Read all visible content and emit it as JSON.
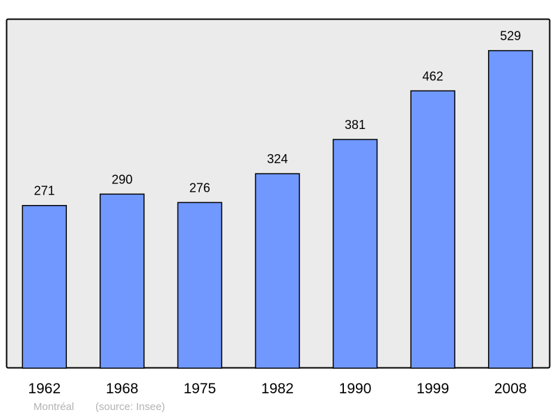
{
  "chart_data": {
    "type": "bar",
    "categories": [
      "1962",
      "1968",
      "1975",
      "1982",
      "1990",
      "1999",
      "2008"
    ],
    "values": [
      271,
      290,
      276,
      324,
      381,
      462,
      529
    ],
    "title": "",
    "xlabel": "",
    "ylabel": "",
    "ylim": [
      0,
      582
    ],
    "grid": false,
    "data_labels": true,
    "colors": {
      "bar": "#7098ff",
      "plot_background": "#ebebeb",
      "border": "#000000"
    }
  },
  "caption": {
    "place": "Montréal",
    "source": "(source: Insee)"
  }
}
